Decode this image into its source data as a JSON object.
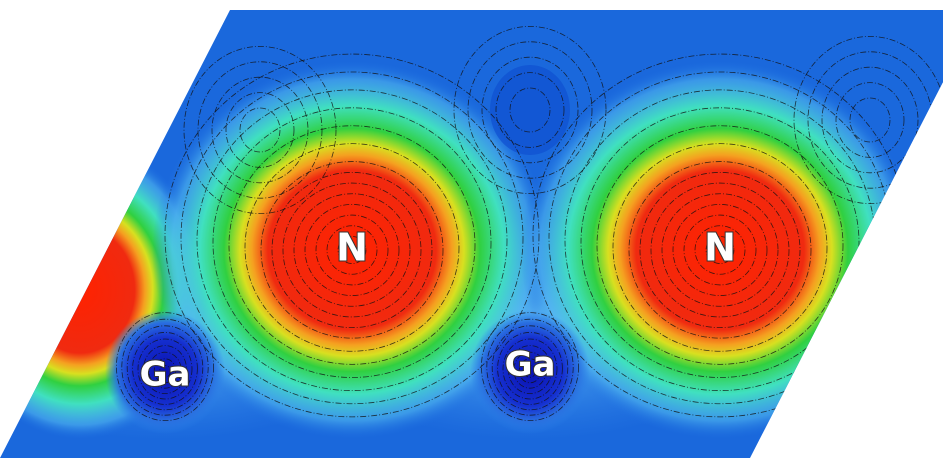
{
  "atoms": [
    "N",
    "N",
    "Ga",
    "Ga"
  ]
}
